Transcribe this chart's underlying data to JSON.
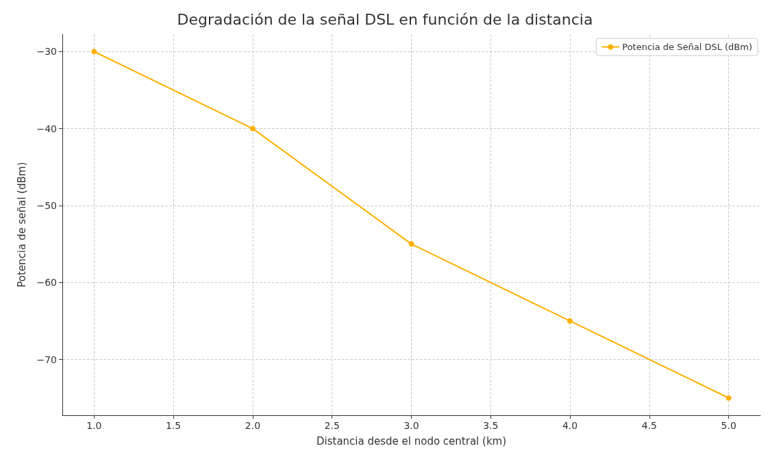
{
  "chart_data": {
    "type": "line",
    "title": "Degradación de la señal DSL en función de la distancia",
    "xlabel": "Distancia desde el nodo central (km)",
    "ylabel": "Potencia de señal (dBm)",
    "x": [
      1,
      2,
      3,
      4,
      5
    ],
    "series": [
      {
        "name": "Potencia de Señal DSL (dBm)",
        "color": "#ffb000",
        "values": [
          -30,
          -40,
          -55,
          -65,
          -75
        ]
      }
    ],
    "xlim": [
      0.8,
      5.2
    ],
    "xticks": [
      {
        "value": 1,
        "label": "1.0"
      },
      {
        "value": 1.5,
        "label": "1.5"
      },
      {
        "value": 2,
        "label": "2.0"
      },
      {
        "value": 2.5,
        "label": "2.5"
      },
      {
        "value": 3,
        "label": "3.0"
      },
      {
        "value": 3.5,
        "label": "3.5"
      },
      {
        "value": 4,
        "label": "4.0"
      },
      {
        "value": 4.5,
        "label": "4.5"
      },
      {
        "value": 5,
        "label": "5.0"
      }
    ],
    "ylim": [
      -77.25,
      -27.75
    ],
    "yticks": [
      {
        "value": -70,
        "label": "−70"
      },
      {
        "value": -60,
        "label": "−60"
      },
      {
        "value": -50,
        "label": "−50"
      },
      {
        "value": -40,
        "label": "−40"
      },
      {
        "value": -30,
        "label": "−30"
      }
    ],
    "grid": true,
    "legend": "top right",
    "marker": "circle",
    "line_style": "solid"
  }
}
